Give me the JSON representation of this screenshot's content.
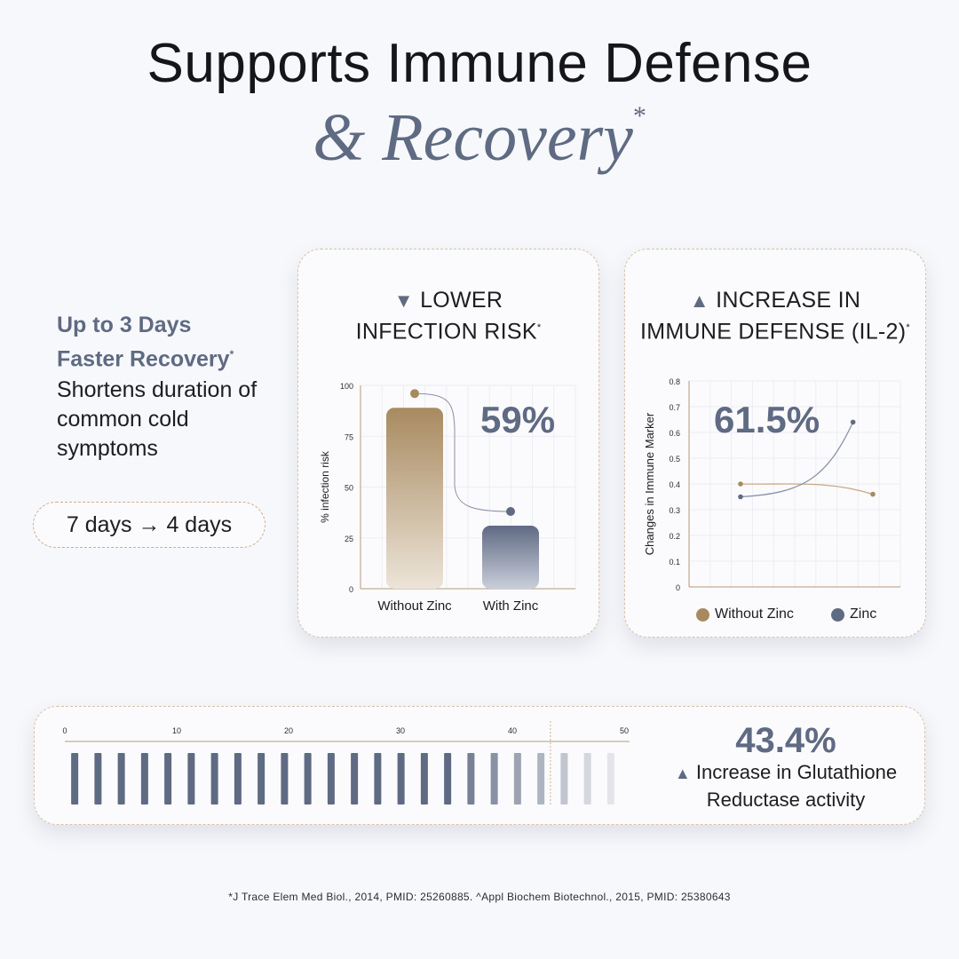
{
  "header": {
    "title": "Supports Immune Defense",
    "subtitle": "& Recovery",
    "subtitle_mark": "*"
  },
  "left": {
    "headline_line1": "Up to 3 Days",
    "headline_line2": "Faster Recovery",
    "headline_mark": "*",
    "body": "Shortens duration of common cold symptoms",
    "pill": "7 days → 4 days"
  },
  "card1": {
    "title_line1": "LOWER",
    "title_line2": "INFECTION RISK",
    "title_mark": "*",
    "icon": "triangle-down-icon",
    "stat": "59%"
  },
  "card2": {
    "title_line1": "INCREASE IN",
    "title_line2": "IMMUNE DEFENSE (IL-2)",
    "title_mark": "*",
    "icon": "triangle-up-icon",
    "stat": "61.5%",
    "legend": [
      {
        "label": "Without Zinc",
        "color": "#a88a60"
      },
      {
        "label": "Zinc",
        "color": "#5f6a83"
      }
    ]
  },
  "card3": {
    "stat": "43.4%",
    "line1": "Increase in Glutathione",
    "line2": "Reductase activity",
    "icon": "triangle-up-icon"
  },
  "footnote": "*J Trace Elem Med Biol., 2014, PMID: 25260885. ^Appl Biochem Biotechnol., 2015, PMID: 25380643",
  "colors": {
    "accent": "#5f6a83",
    "gold": "#a88a60"
  },
  "chart_data": [
    {
      "type": "bar",
      "categories": [
        "Without Zinc",
        "With Zinc"
      ],
      "values": [
        89,
        31
      ],
      "ylabel": "% infection risk",
      "ylim": [
        0,
        100
      ],
      "yticks": [
        0,
        25,
        50,
        75,
        100
      ],
      "annotation": "59%"
    },
    {
      "type": "line",
      "ylabel": "Changes in Immune Marker",
      "ylim": [
        0,
        0.8
      ],
      "yticks": [
        "0",
        "0.1",
        "0.2",
        "0.3",
        "0.4",
        "0.5",
        "0.6",
        "0.7",
        "0.8"
      ],
      "series": [
        {
          "name": "Without Zinc",
          "points": [
            [
              0,
              0.4
            ],
            [
              1,
              0.36
            ]
          ]
        },
        {
          "name": "Zinc",
          "points": [
            [
              0,
              0.35
            ],
            [
              0.85,
              0.64
            ]
          ]
        }
      ],
      "annotation": "61.5%"
    },
    {
      "type": "bar",
      "xlim": [
        0,
        50
      ],
      "xticks": [
        "0",
        "10",
        "20",
        "30",
        "40",
        "50"
      ],
      "bar_count": 24,
      "marker_value": 43.4
    }
  ]
}
